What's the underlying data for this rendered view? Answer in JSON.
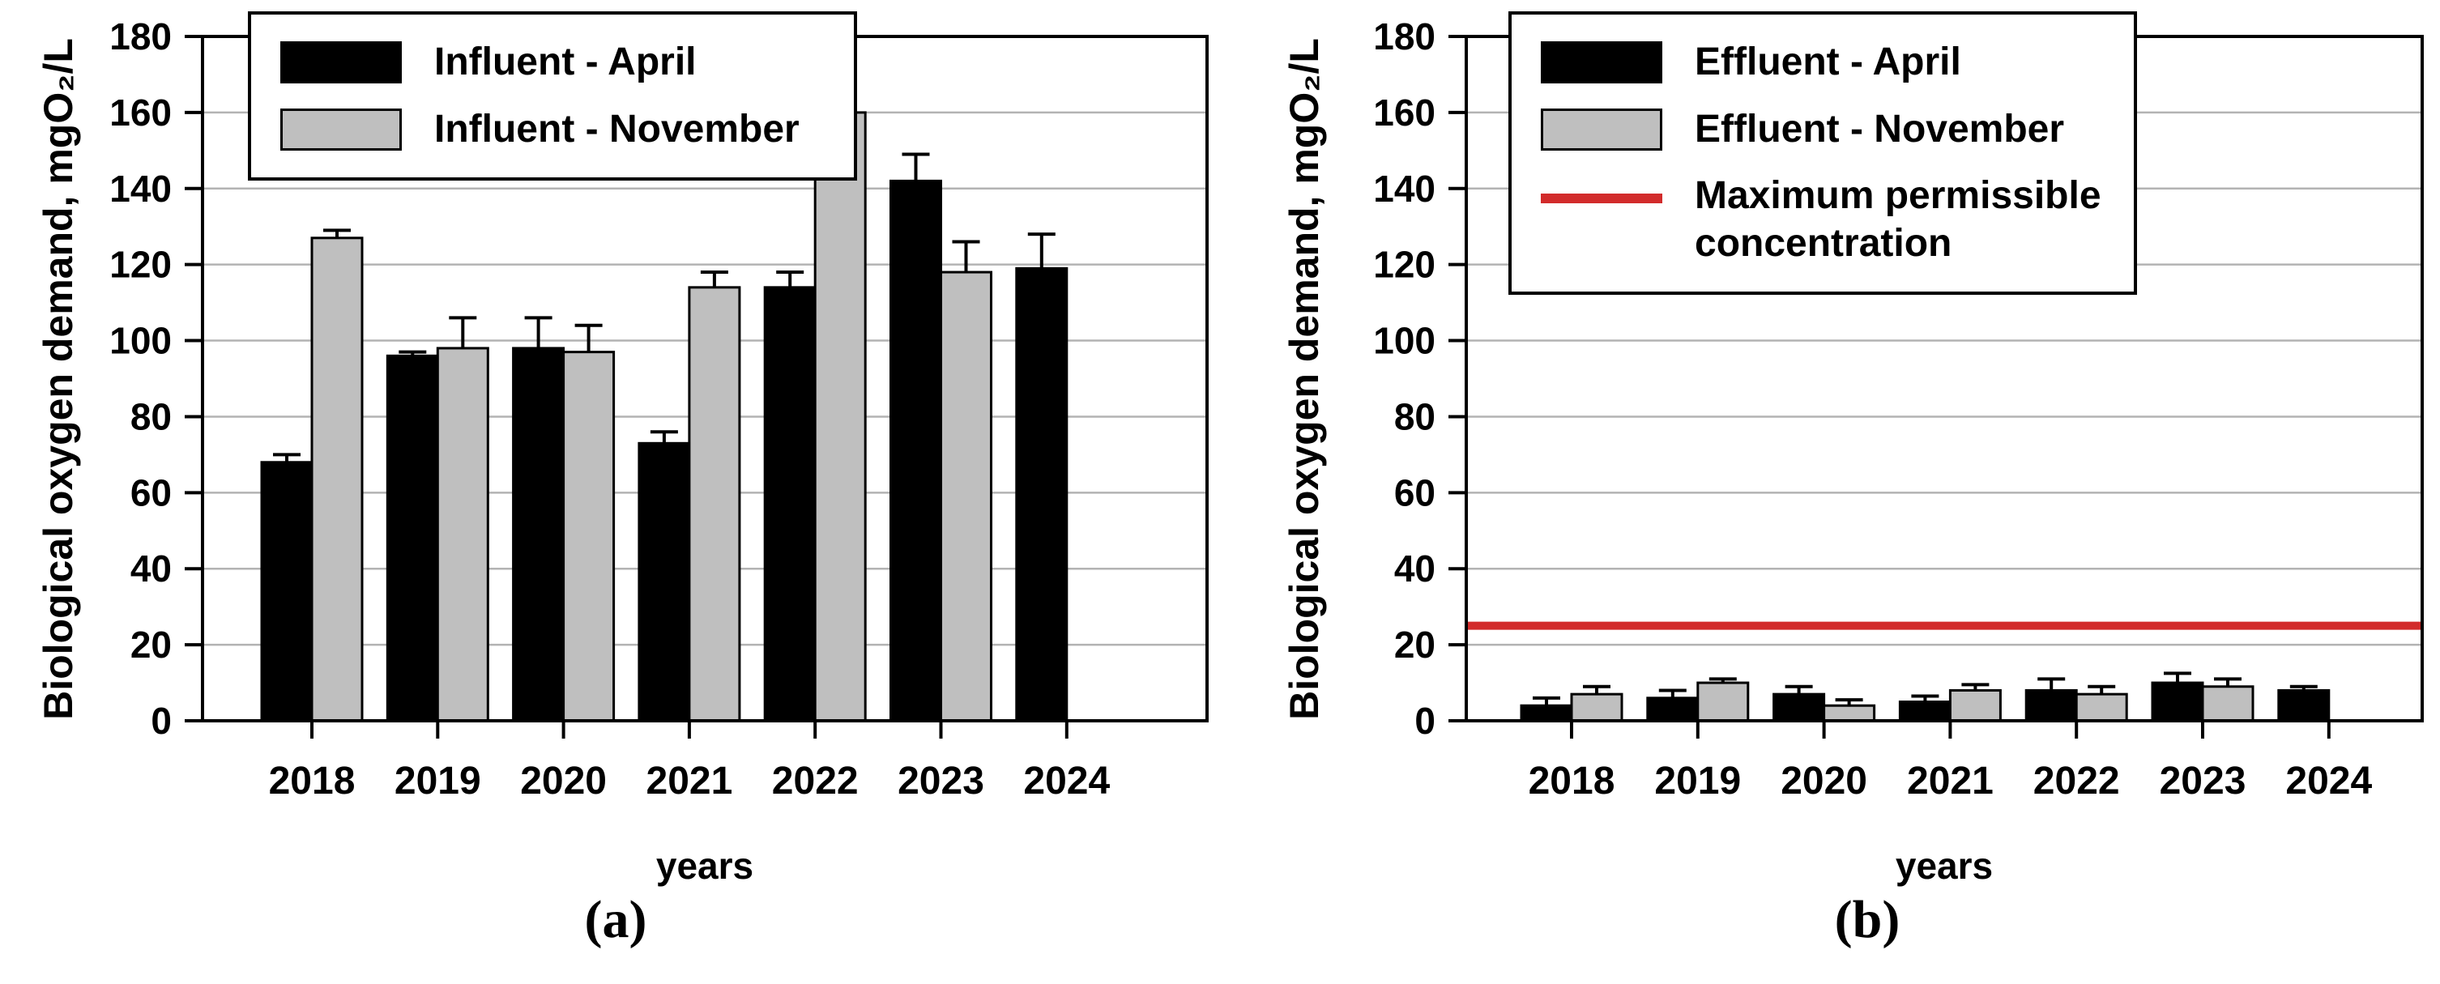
{
  "figure": {
    "captions": [
      "(a)",
      "(b)"
    ]
  },
  "colors": {
    "bar_black": "#000000",
    "bar_gray": "#bfbfbf",
    "grid": "#b3b3b3",
    "frame": "#000000",
    "limit_red": "#d22b2b"
  },
  "chart_data": [
    {
      "type": "bar",
      "panel": "a",
      "ylabel": "Biological oxygen demand, mgO₂/L",
      "xlabel": "years",
      "ylim": [
        0,
        180
      ],
      "yticks": [
        0,
        20,
        40,
        60,
        80,
        100,
        120,
        140,
        160,
        180
      ],
      "categories": [
        "2018",
        "2019",
        "2020",
        "2021",
        "2022",
        "2023",
        "2024"
      ],
      "grid": true,
      "legend_position": "top-left",
      "series": [
        {
          "name": "Influent - April",
          "color": "#000000",
          "values": [
            68,
            96,
            98,
            73,
            114,
            142,
            119
          ],
          "errors": [
            2,
            1,
            8,
            3,
            4,
            7,
            9
          ]
        },
        {
          "name": "Influent - November",
          "color": "#bfbfbf",
          "values": [
            127,
            98,
            97,
            114,
            160,
            118,
            null
          ],
          "errors": [
            2,
            8,
            7,
            4,
            10,
            8,
            null
          ]
        }
      ]
    },
    {
      "type": "bar",
      "panel": "b",
      "ylabel": "Biological oxygen demand, mgO₂/L",
      "xlabel": "years",
      "ylim": [
        0,
        180
      ],
      "yticks": [
        0,
        20,
        40,
        60,
        80,
        100,
        120,
        140,
        160,
        180
      ],
      "categories": [
        "2018",
        "2019",
        "2020",
        "2021",
        "2022",
        "2023",
        "2024"
      ],
      "grid": true,
      "legend_position": "top-left",
      "series": [
        {
          "name": "Effluent - April",
          "color": "#000000",
          "values": [
            4,
            6,
            7,
            5,
            8,
            10,
            8
          ],
          "errors": [
            2,
            2,
            2,
            1.5,
            3,
            2.5,
            1
          ]
        },
        {
          "name": "Effluent - November",
          "color": "#bfbfbf",
          "values": [
            7,
            10,
            4,
            8,
            7,
            9,
            null
          ],
          "errors": [
            2,
            1,
            1.5,
            1.5,
            2,
            2,
            null
          ]
        }
      ],
      "hline": {
        "label": "Maximum permissible concentration",
        "value": 25,
        "color": "#d22b2b"
      }
    }
  ]
}
